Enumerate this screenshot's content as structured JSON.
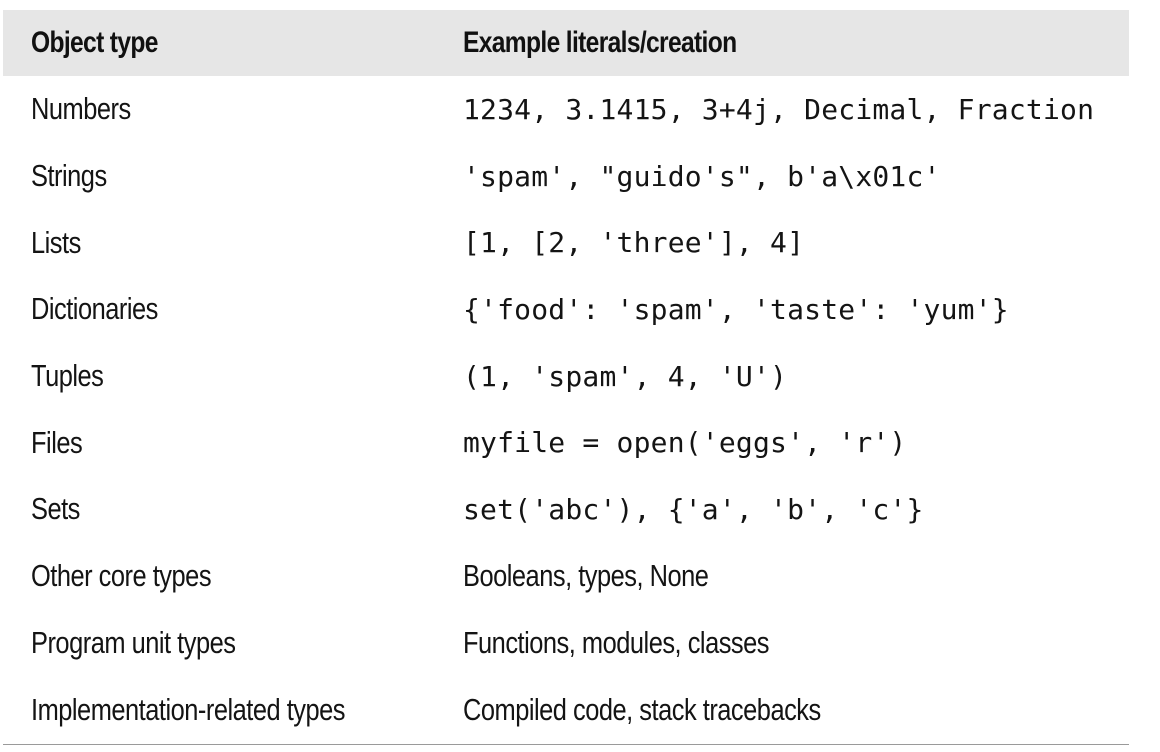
{
  "header": {
    "col1": "Object type",
    "col2": "Example literals/creation"
  },
  "rows": [
    {
      "type": "Numbers",
      "example": "1234, 3.1415, 3+4j, Decimal, Fraction",
      "example_is_code": true
    },
    {
      "type": "Strings",
      "example": "'spam', \"guido's\", b'a\\x01c'",
      "example_is_code": true
    },
    {
      "type": "Lists",
      "example": "[1, [2, 'three'], 4]",
      "example_is_code": true
    },
    {
      "type": "Dictionaries",
      "example": "{'food': 'spam', 'taste': 'yum'}",
      "example_is_code": true
    },
    {
      "type": "Tuples",
      "example": "(1, 'spam', 4, 'U')",
      "example_is_code": true
    },
    {
      "type": "Files",
      "example": "myfile = open('eggs', 'r')",
      "example_is_code": true
    },
    {
      "type": "Sets",
      "example": "set('abc'), {'a', 'b', 'c'}",
      "example_is_code": true
    },
    {
      "type": "Other core types",
      "example": "Booleans, types, None",
      "example_is_code": false
    },
    {
      "type": "Program unit types",
      "example": "Functions, modules, classes",
      "example_is_code": false
    },
    {
      "type": "Implementation-related types",
      "example": "Compiled code, stack tracebacks",
      "example_is_code": false
    }
  ]
}
